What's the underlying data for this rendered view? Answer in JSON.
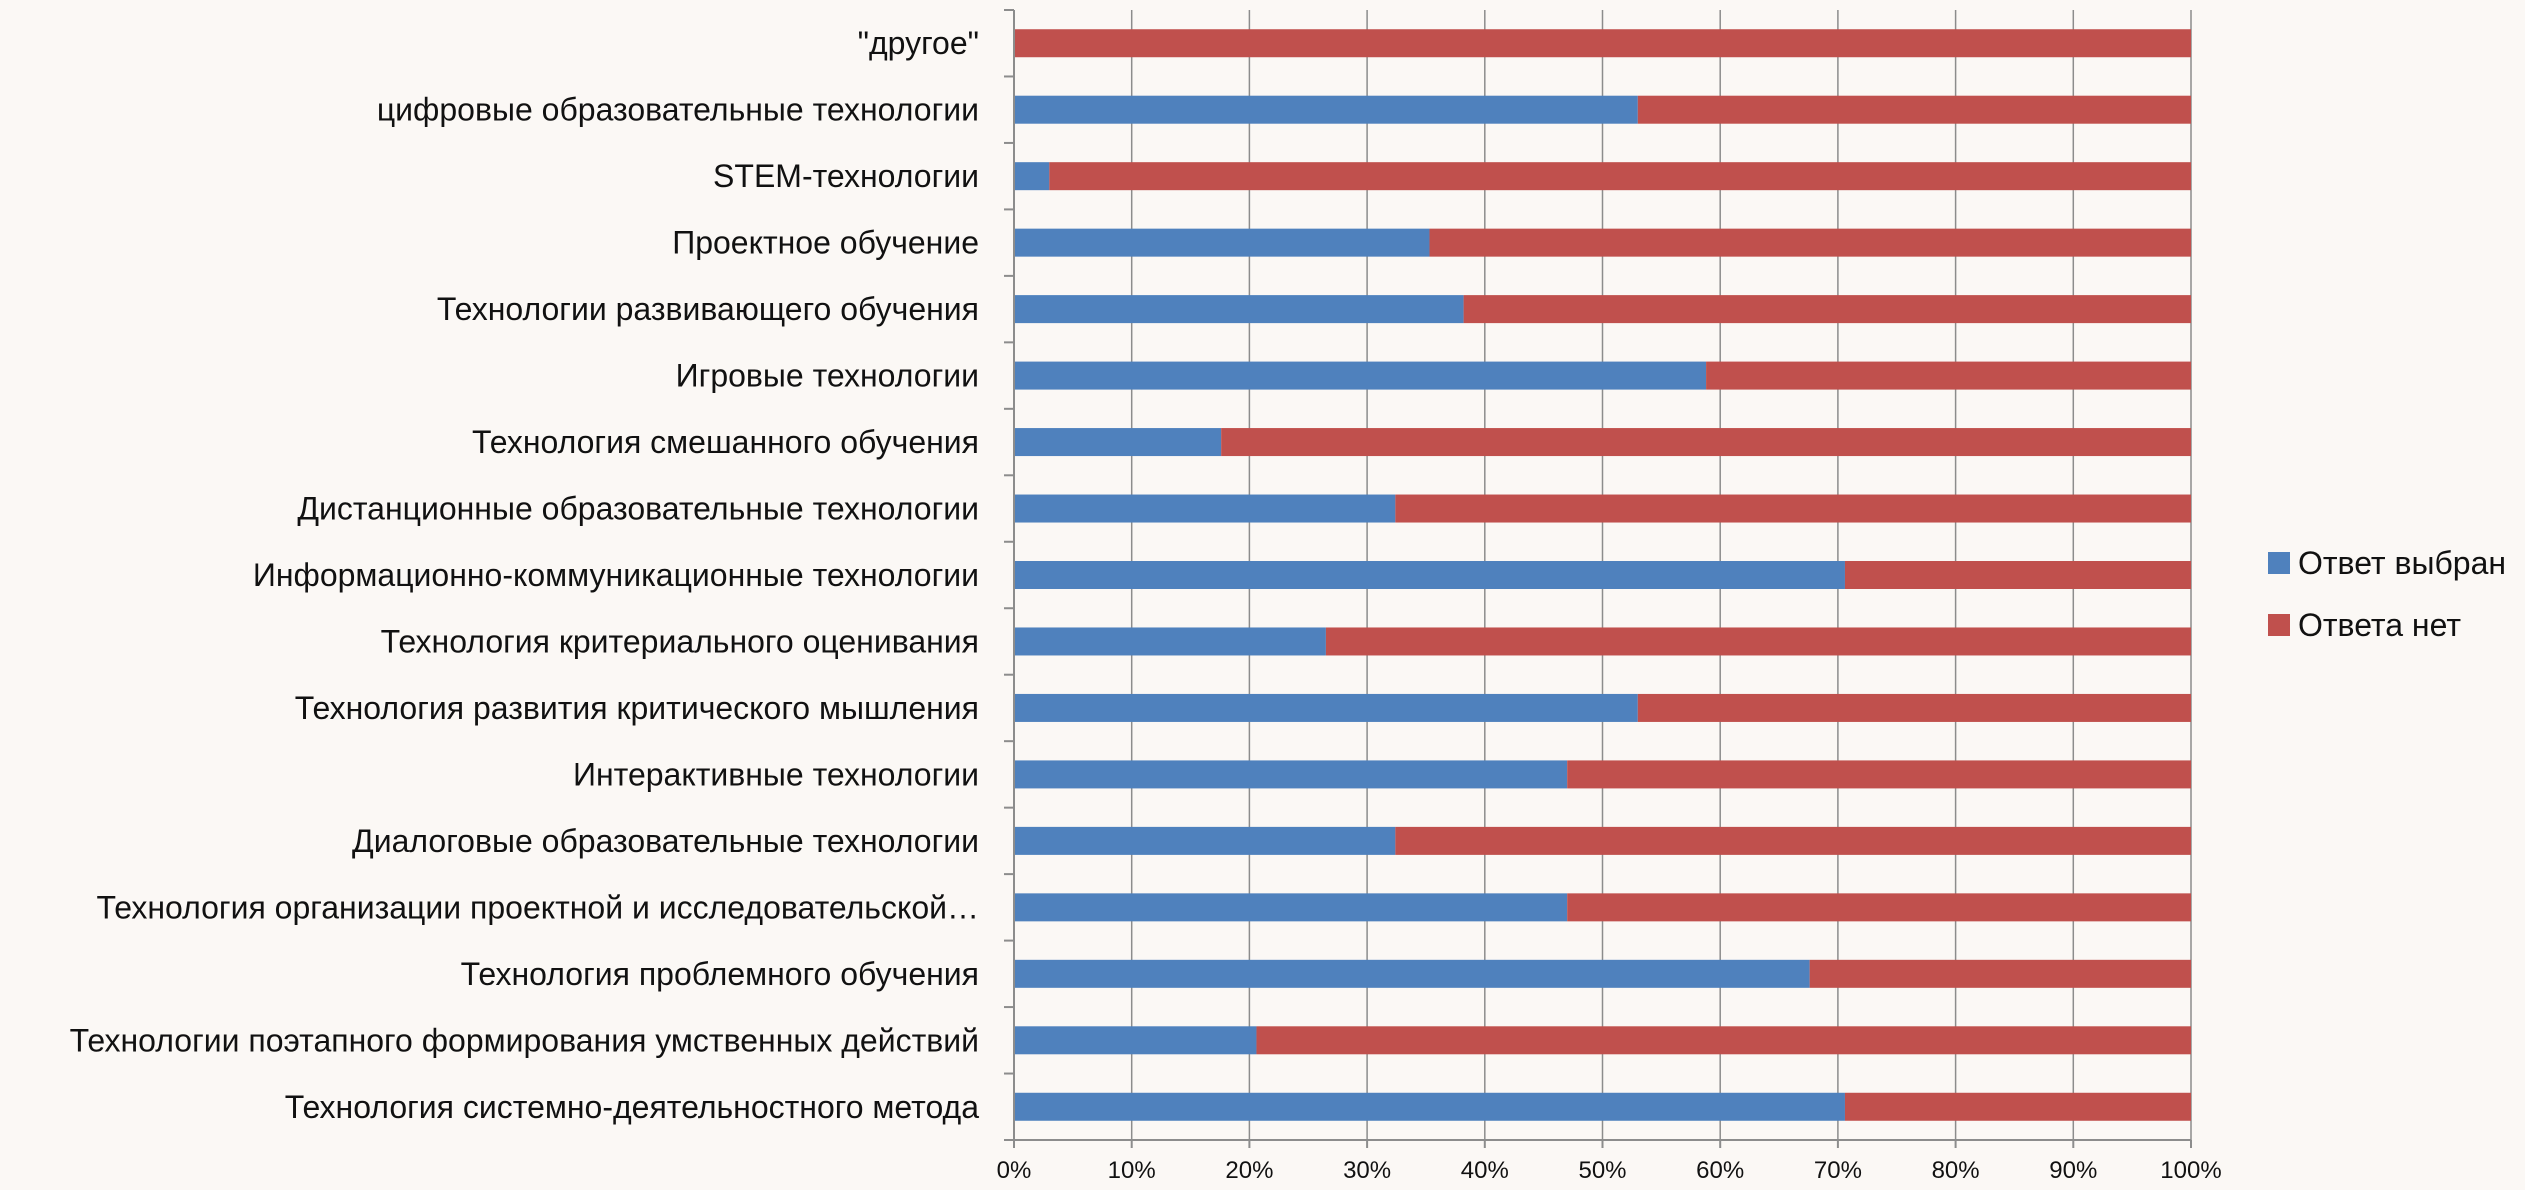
{
  "chart_data": {
    "type": "bar",
    "orientation": "horizontal",
    "stacked": "percent",
    "categories": [
      "\"другое\"",
      "цифровые образовательные технологии",
      "STEM-технологии",
      "Проектное обучение",
      "Технологии развивающего обучения",
      "Игровые технологии",
      "Технология смешанного обучения",
      "Дистанционные образовательные технологии",
      "Информационно-коммуникационные технологии",
      "Технология критериального оценивания",
      "Технология развития критического мышления",
      "Интерактивные технологии",
      "Диалоговые образовательные технологии",
      "Технология организации проектной и исследовательской…",
      "Технология проблемного обучения",
      "Технологии поэтапного формирования умственных действий",
      "Технология системно-деятельностного метода"
    ],
    "series": [
      {
        "name": "Ответ выбран",
        "color": "#4f81bd",
        "values": [
          0,
          53,
          3,
          35.3,
          38.2,
          58.8,
          17.6,
          32.4,
          70.6,
          26.5,
          53,
          47,
          32.4,
          47,
          67.6,
          20.6,
          70.6
        ]
      },
      {
        "name": "Ответа нет",
        "color": "#c0504d",
        "values": [
          100,
          47,
          97,
          64.7,
          61.8,
          41.2,
          82.4,
          67.6,
          29.4,
          73.5,
          47,
          53,
          67.6,
          53,
          32.4,
          79.4,
          29.4
        ]
      }
    ],
    "x_ticks": [
      "0%",
      "10%",
      "20%",
      "30%",
      "40%",
      "50%",
      "60%",
      "70%",
      "80%",
      "90%",
      "100%"
    ],
    "xlim": [
      0,
      100
    ],
    "grid": "vertical",
    "legend": "right",
    "title": "",
    "xlabel": "",
    "ylabel": ""
  }
}
